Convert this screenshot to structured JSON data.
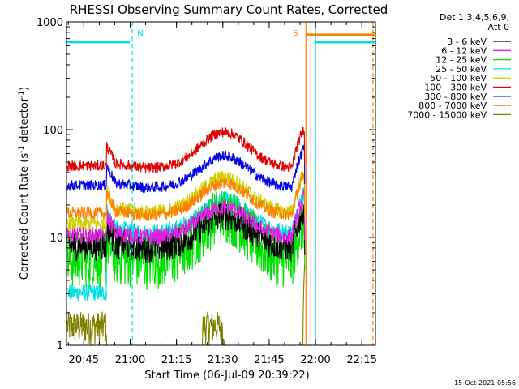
{
  "chart_data": {
    "type": "line",
    "title": "RHESSI Observing Summary Count Rates, Corrected",
    "xlabel": "Start Time (06-Jul-09 20:39:22)",
    "ylabel_main": "Corrected Count Rate (s",
    "ylabel_sup1": "-1",
    "ylabel_mid": " detector",
    "ylabel_sup2": "-1",
    "ylabel_end": ")",
    "yscale": "log",
    "ylim": [
      1,
      1000
    ],
    "xlim_minutes": [
      0,
      100
    ],
    "x_ticks": [
      {
        "label": "20:45",
        "minute": 5.6
      },
      {
        "label": "21:00",
        "minute": 20.6
      },
      {
        "label": "21:15",
        "minute": 35.6
      },
      {
        "label": "21:30",
        "minute": 50.6
      },
      {
        "label": "21:45",
        "minute": 65.6
      },
      {
        "label": "22:00",
        "minute": 80.6
      },
      {
        "label": "22:15",
        "minute": 95.6
      }
    ],
    "y_ticks": [
      {
        "label": "1",
        "value": 1
      },
      {
        "label": "10",
        "value": 10
      },
      {
        "label": "100",
        "value": 100
      },
      {
        "label": "1000",
        "value": 1000
      }
    ],
    "legend_header": [
      "Det 1,3,4,5,6,9,",
      "Att 0"
    ],
    "legend_position": "right",
    "series": [
      {
        "name": "3 - 6 keV",
        "color": "#000000",
        "base_quiet": 8,
        "base_mid": 16,
        "noise": 0.14
      },
      {
        "name": "6 - 12 keV",
        "color": "#e020e0",
        "base_quiet": 10,
        "base_mid": 19,
        "noise": 0.08
      },
      {
        "name": "12 - 25 keV",
        "color": "#00e000",
        "base_quiet": 6,
        "base_mid": 16,
        "noise": 0.18
      },
      {
        "name": "25 - 50 keV",
        "color": "#00e0e0",
        "base_quiet": 11,
        "base_mid": 22,
        "noise": 0.08
      },
      {
        "name": "50 - 100 keV",
        "color": "#d0d000",
        "base_quiet": 17,
        "base_mid": 36,
        "noise": 0.07
      },
      {
        "name": "100 - 300 keV",
        "color": "#e00000",
        "base_quiet": 44,
        "base_mid": 95,
        "noise": 0.05
      },
      {
        "name": "300 - 800 keV",
        "color": "#0000e0",
        "base_quiet": 29,
        "base_mid": 57,
        "noise": 0.05
      },
      {
        "name": "800 - 7000 keV",
        "color": "#ff8000",
        "base_quiet": 16,
        "base_mid": 32,
        "noise": 0.06
      },
      {
        "name": "7000 - 15000 keV",
        "color": "#808000",
        "base_quiet": 1,
        "base_mid": 1,
        "noise": 0.3
      }
    ],
    "markers": [
      {
        "label": "N",
        "minute": 21.3,
        "color": "#00e0e0"
      },
      {
        "label": "S",
        "minute": 76.5,
        "color": "#ff8000"
      }
    ],
    "saturation_lines": [
      {
        "color": "#00e0e0",
        "start": 0,
        "end": 20.5,
        "value": 650
      },
      {
        "color": "#00e0e0",
        "start": 80.6,
        "end": 100,
        "value": 650
      },
      {
        "color": "#ff8000",
        "start": 77.6,
        "end": 100,
        "value": 760
      }
    ],
    "vertical_lines": [
      {
        "minute": 21.3,
        "color": "#00e0e0",
        "dashed": true
      },
      {
        "minute": 77.5,
        "color": "#ff8000",
        "dashed": false
      },
      {
        "minute": 79.1,
        "color": "#ff8000",
        "dashed": false
      },
      {
        "minute": 80.6,
        "color": "#00e0e0",
        "dashed": false
      },
      {
        "minute": 99.2,
        "color": "#ff8000",
        "dashed": true
      }
    ],
    "timestamp": "15-Oct-2021 05:56"
  }
}
